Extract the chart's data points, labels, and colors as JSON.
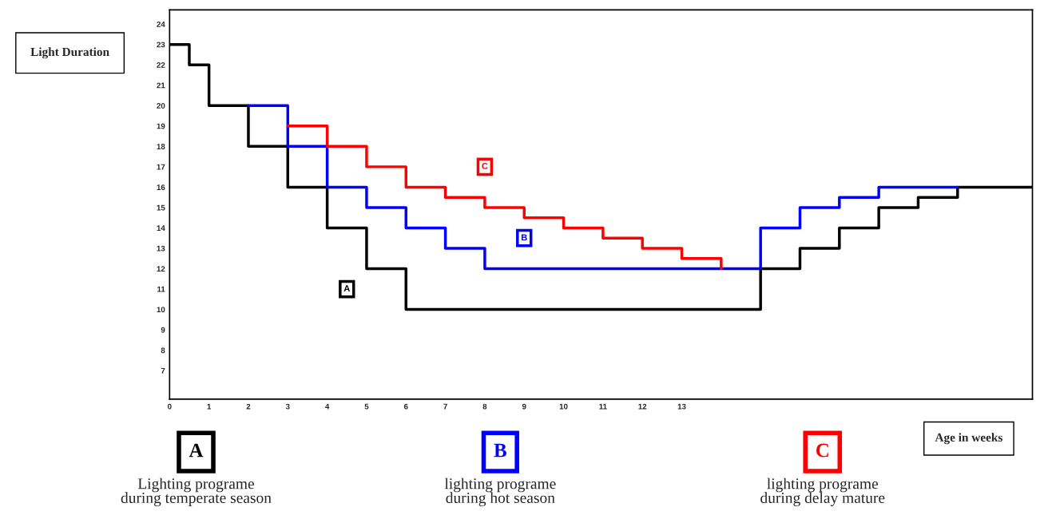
{
  "chart_data": {
    "type": "step",
    "xlabel": "Age in weeks",
    "ylabel": "Light Duration",
    "xlim": [
      0,
      21.9
    ],
    "ylim": [
      5.6,
      24.7
    ],
    "xticks": [
      0,
      1,
      2,
      3,
      4,
      5,
      6,
      7,
      8,
      9,
      10,
      11,
      12,
      13
    ],
    "yticks": [
      7,
      8,
      9,
      10,
      11,
      12,
      13,
      14,
      15,
      16,
      17,
      18,
      19,
      20,
      21,
      22,
      23,
      24
    ],
    "grid": false,
    "legend": "bottom",
    "series": [
      {
        "name": "A",
        "color": "#000000",
        "x": [
          0,
          0.5,
          1,
          2,
          3,
          4,
          5,
          6,
          15,
          16,
          17,
          18,
          19,
          20,
          21.9
        ],
        "values": [
          23,
          22,
          20,
          18,
          16,
          14,
          12,
          10,
          12,
          13,
          14,
          15,
          15.5,
          16,
          16
        ]
      },
      {
        "name": "B",
        "color": "#0000ff",
        "x": [
          2,
          3,
          4,
          5,
          6,
          7,
          8,
          15,
          16,
          17,
          18,
          20
        ],
        "values": [
          20,
          18,
          16,
          15,
          14,
          13,
          12,
          14,
          15,
          15.5,
          16,
          16
        ]
      },
      {
        "name": "C",
        "color": "#ff0000",
        "x": [
          3,
          4,
          5,
          6,
          7,
          8,
          9,
          10,
          11,
          12,
          13,
          14
        ],
        "values": [
          19,
          18,
          17,
          16,
          15.5,
          15,
          14.5,
          14,
          13.5,
          13,
          12.5,
          12
        ]
      }
    ],
    "annotations": [
      {
        "text": "A",
        "x": 4.5,
        "y": 11
      },
      {
        "text": "B",
        "x": 9,
        "y": 13.5
      },
      {
        "text": "C",
        "x": 8,
        "y": 17
      },
      "Lighting programe\nduring temperate season",
      "lighting programe\nduring hot season",
      "lighting programe\nduring delay mature"
    ]
  }
}
